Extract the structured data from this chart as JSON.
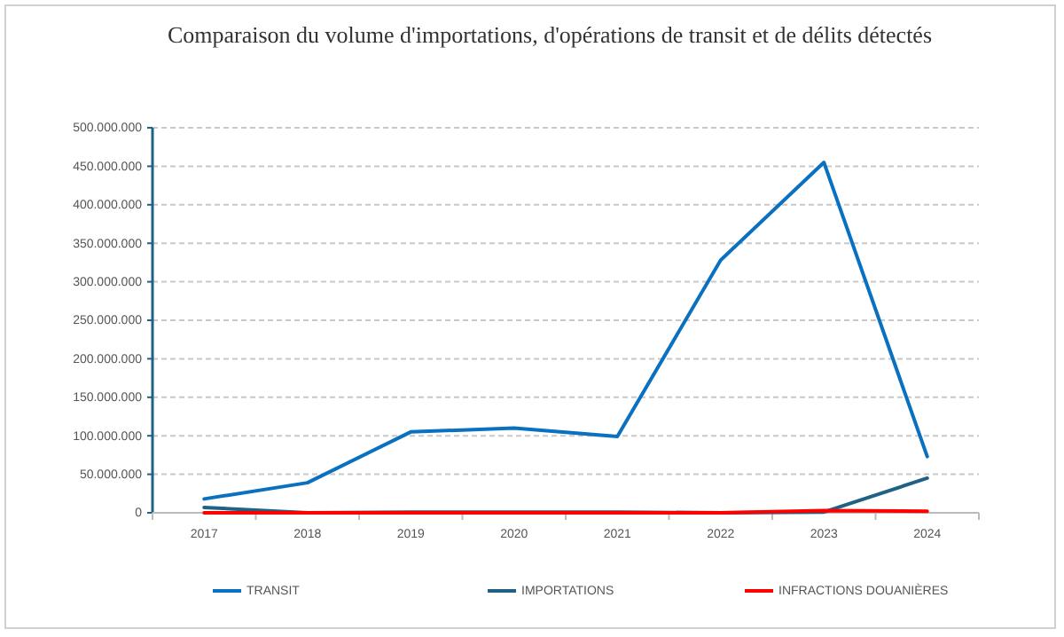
{
  "chart_data": {
    "type": "line",
    "title": "Comparaison du volume d'importations, d'opérations de transit et de délits détectés",
    "categories": [
      "2017",
      "2018",
      "2019",
      "2020",
      "2021",
      "2022",
      "2023",
      "2024"
    ],
    "series": [
      {
        "name": "TRANSIT",
        "color": "#0a70c0",
        "values": [
          18000000,
          39000000,
          105000000,
          110000000,
          99000000,
          328000000,
          455000000,
          73000000
        ]
      },
      {
        "name": "IMPORTATIONS",
        "color": "#1f6285",
        "values": [
          7000000,
          0,
          1000000,
          1000000,
          1000000,
          0,
          1000000,
          45000000
        ]
      },
      {
        "name": "INFRACTIONS DOUANIÈRES",
        "color": "#ff0000",
        "values": [
          0,
          0,
          0,
          0,
          0,
          0,
          3000000,
          2000000
        ]
      }
    ],
    "ylim": [
      0,
      500000000
    ],
    "yticks": [
      {
        "value": 0,
        "label": "0"
      },
      {
        "value": 50000000,
        "label": "50.000.000"
      },
      {
        "value": 100000000,
        "label": "100.000.000"
      },
      {
        "value": 150000000,
        "label": "150.000.000"
      },
      {
        "value": 200000000,
        "label": "200.000.000"
      },
      {
        "value": 250000000,
        "label": "250.000.000"
      },
      {
        "value": 300000000,
        "label": "300.000.000"
      },
      {
        "value": 350000000,
        "label": "350.000.000"
      },
      {
        "value": 400000000,
        "label": "400.000.000"
      },
      {
        "value": 450000000,
        "label": "450.000.000"
      },
      {
        "value": 500000000,
        "label": "500.000.000"
      }
    ],
    "grid": "y",
    "legend": "bottom",
    "marker": "none",
    "line_style": "solid"
  }
}
